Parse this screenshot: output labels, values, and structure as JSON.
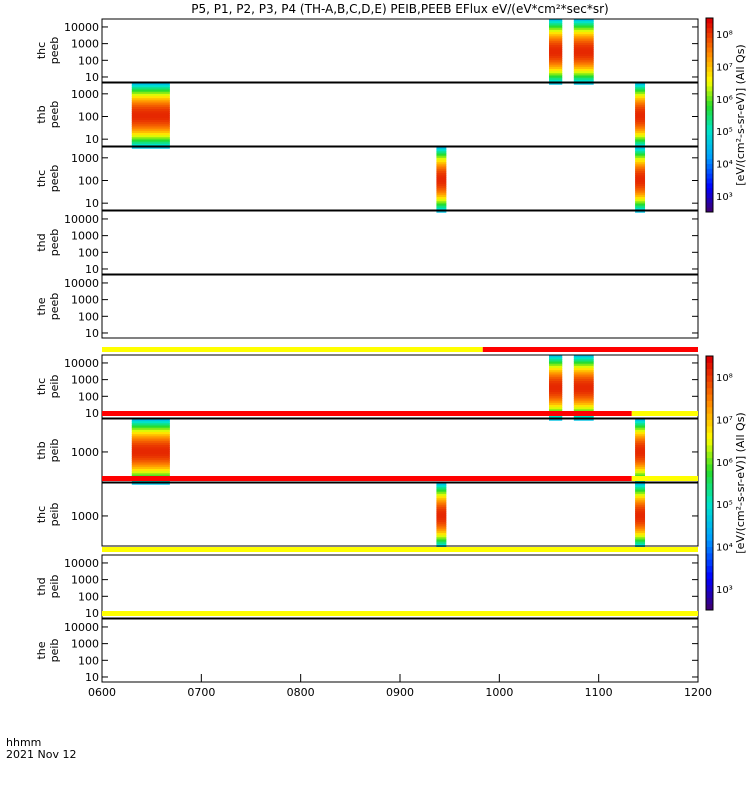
{
  "chart_data": {
    "type": "heatmap",
    "title": "P5, P1, P2, P3, P4 (TH-A,B,C,D,E) PEIB,PEEB EFlux eV/(eV*cm²*sec*sr)",
    "x_axis": {
      "range": [
        "0600",
        "1200"
      ],
      "ticks": [
        "0600",
        "0700",
        "0800",
        "0900",
        "1000",
        "1100",
        "1200"
      ],
      "label_left_1": "hhmm",
      "label_left_2": "2021 Nov 12"
    },
    "color_scale": "rainbow",
    "colorbar_units": {
      "peeb": "[eV/(cm²-s-sr-eV)] (All Qs)",
      "peib": "[eV/(cm²-s-sr-eV)] (All Qs)"
    },
    "colorbar_ticks": {
      "peeb": [
        "10³",
        "10⁴",
        "10⁵",
        "10⁶",
        "10⁷",
        "10⁸"
      ],
      "peib": [
        "10³",
        "10⁴",
        "10⁵",
        "10⁶",
        "10⁷",
        "10⁸"
      ]
    },
    "panels": [
      {
        "probe": "thc",
        "product": "peeb",
        "yticks": [
          "10",
          "100",
          "1000",
          "10000"
        ],
        "yrange": [
          5,
          30000
        ],
        "log": true,
        "intervals": [
          {
            "start": "1030",
            "end": "1038",
            "bias": "high"
          },
          {
            "start": "1045",
            "end": "1057",
            "bias": "high"
          }
        ]
      },
      {
        "probe": "thb",
        "product": "peeb",
        "yticks": [
          "10",
          "100",
          "1000"
        ],
        "yrange": [
          5,
          3000
        ],
        "log": true,
        "intervals": [
          {
            "start": "0618",
            "end": "0641",
            "bias": "low"
          },
          {
            "start": "1122",
            "end": "1128",
            "bias": "low"
          }
        ]
      },
      {
        "probe": "thc",
        "product": "peeb",
        "yticks": [
          "10",
          "100",
          "1000"
        ],
        "yrange": [
          5,
          3000
        ],
        "log": true,
        "intervals": [
          {
            "start": "0922",
            "end": "0928",
            "bias": "low"
          },
          {
            "start": "1122",
            "end": "1128",
            "bias": "low"
          }
        ]
      },
      {
        "probe": "thd",
        "product": "peeb",
        "yticks": [
          "10",
          "100",
          "1000",
          "10000"
        ],
        "yrange": [
          5,
          30000
        ],
        "log": true,
        "intervals": []
      },
      {
        "probe": "the",
        "product": "peeb",
        "yticks": [
          "10",
          "100",
          "1000",
          "10000"
        ],
        "yrange": [
          5,
          30000
        ],
        "log": true,
        "intervals": []
      },
      {
        "probe": "thc",
        "product": "peib",
        "yticks": [
          "10",
          "100",
          "1000",
          "10000"
        ],
        "yrange": [
          5,
          30000
        ],
        "log": true,
        "intervals": [
          {
            "start": "1030",
            "end": "1038",
            "bias": "high"
          },
          {
            "start": "1045",
            "end": "1057",
            "bias": "high"
          }
        ]
      },
      {
        "probe": "thb",
        "product": "peib",
        "yticks": [
          "1000"
        ],
        "yrange": [
          150,
          8000
        ],
        "log": true,
        "intervals": [
          {
            "start": "0618",
            "end": "0641",
            "bias": "mid"
          },
          {
            "start": "1122",
            "end": "1128",
            "bias": "mid"
          }
        ]
      },
      {
        "probe": "thc",
        "product": "peib",
        "yticks": [
          "1000"
        ],
        "yrange": [
          150,
          8000
        ],
        "log": true,
        "intervals": [
          {
            "start": "0922",
            "end": "0928",
            "bias": "mid"
          },
          {
            "start": "1122",
            "end": "1128",
            "bias": "mid"
          }
        ]
      },
      {
        "probe": "thd",
        "product": "peib",
        "yticks": [
          "10",
          "100",
          "1000",
          "10000"
        ],
        "yrange": [
          5,
          30000
        ],
        "log": true,
        "intervals": []
      },
      {
        "probe": "the",
        "product": "peib",
        "yticks": [
          "10",
          "100",
          "1000",
          "10000"
        ],
        "yrange": [
          5,
          30000
        ],
        "log": true,
        "intervals": []
      }
    ],
    "status_bars": [
      {
        "after_panel": 4,
        "segments": [
          {
            "start": "0600",
            "end": "0950",
            "color": "#ffff00"
          },
          {
            "start": "0950",
            "end": "1200",
            "color": "#ff0000"
          }
        ]
      },
      {
        "after_panel": 5,
        "segments": [
          {
            "start": "0600",
            "end": "1120",
            "color": "#ff0000"
          },
          {
            "start": "1120",
            "end": "1200",
            "color": "#ffff00"
          }
        ]
      },
      {
        "after_panel": 6,
        "segments": [
          {
            "start": "0600",
            "end": "1120",
            "color": "#ff0000"
          },
          {
            "start": "1120",
            "end": "1200",
            "color": "#ffff00"
          }
        ]
      },
      {
        "after_panel": 7,
        "segments": [
          {
            "start": "0600",
            "end": "1200",
            "color": "#ffff00"
          }
        ]
      },
      {
        "after_panel": 8,
        "segments": [
          {
            "start": "0600",
            "end": "1200",
            "color": "#ffff00"
          }
        ]
      }
    ]
  }
}
